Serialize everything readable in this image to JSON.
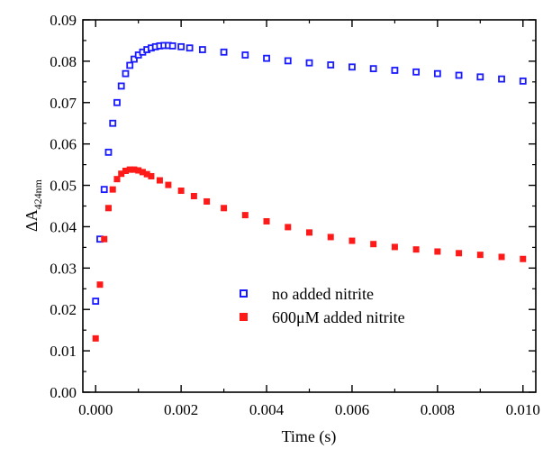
{
  "chart_data": {
    "type": "scatter",
    "xlabel": "Time (s)",
    "ylabel_main": "ΔA",
    "ylabel_sub": "424nm",
    "xlim": [
      -0.0003,
      0.0103
    ],
    "ylim": [
      0.0,
      0.09
    ],
    "xticks": [
      0.0,
      0.002,
      0.004,
      0.006,
      0.008,
      0.01
    ],
    "xtick_labels": [
      "0.000",
      "0.002",
      "0.004",
      "0.006",
      "0.008",
      "0.010"
    ],
    "yticks": [
      0.0,
      0.01,
      0.02,
      0.03,
      0.04,
      0.05,
      0.06,
      0.07,
      0.08,
      0.09
    ],
    "ytick_labels": [
      "0.00",
      "0.01",
      "0.02",
      "0.03",
      "0.04",
      "0.05",
      "0.06",
      "0.07",
      "0.08",
      "0.09"
    ],
    "grid": false,
    "legend_position": "lower-center",
    "series": [
      {
        "name": "no added nitrite",
        "marker": "open-square",
        "color": "#1a1aff",
        "x": [
          0.0,
          0.0001,
          0.0002,
          0.0003,
          0.0004,
          0.0005,
          0.0006,
          0.0007,
          0.0008,
          0.0009,
          0.001,
          0.0011,
          0.0012,
          0.0013,
          0.0014,
          0.0015,
          0.0016,
          0.0017,
          0.0018,
          0.002,
          0.0022,
          0.0025,
          0.003,
          0.0035,
          0.004,
          0.0045,
          0.005,
          0.0055,
          0.006,
          0.0065,
          0.007,
          0.0075,
          0.008,
          0.0085,
          0.009,
          0.0095,
          0.01
        ],
        "y": [
          0.022,
          0.037,
          0.049,
          0.058,
          0.065,
          0.07,
          0.074,
          0.077,
          0.079,
          0.0805,
          0.0815,
          0.0822,
          0.0828,
          0.0832,
          0.0835,
          0.0837,
          0.0838,
          0.0838,
          0.0837,
          0.0835,
          0.0832,
          0.0828,
          0.0822,
          0.0815,
          0.0807,
          0.0801,
          0.0796,
          0.0791,
          0.0786,
          0.0782,
          0.0778,
          0.0774,
          0.077,
          0.0766,
          0.0762,
          0.0757,
          0.0752
        ]
      },
      {
        "name": "600μM added nitrite",
        "marker": "filled-square",
        "color": "#ff1a1a",
        "x": [
          0.0,
          0.0001,
          0.0002,
          0.0003,
          0.0004,
          0.0005,
          0.0006,
          0.0007,
          0.0008,
          0.0009,
          0.001,
          0.0011,
          0.0012,
          0.0013,
          0.0015,
          0.0017,
          0.002,
          0.0023,
          0.0026,
          0.003,
          0.0035,
          0.004,
          0.0045,
          0.005,
          0.0055,
          0.006,
          0.0065,
          0.007,
          0.0075,
          0.008,
          0.0085,
          0.009,
          0.0095,
          0.01
        ],
        "y": [
          0.013,
          0.026,
          0.037,
          0.0445,
          0.049,
          0.0515,
          0.0528,
          0.0535,
          0.0538,
          0.0538,
          0.0536,
          0.0532,
          0.0527,
          0.0522,
          0.0512,
          0.0501,
          0.0487,
          0.0474,
          0.0461,
          0.0445,
          0.0428,
          0.0413,
          0.0399,
          0.0386,
          0.0375,
          0.0366,
          0.0358,
          0.0351,
          0.0345,
          0.034,
          0.0336,
          0.0332,
          0.0327,
          0.0322
        ]
      }
    ]
  }
}
